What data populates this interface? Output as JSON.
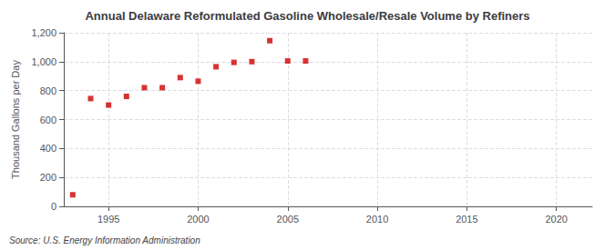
{
  "chart_data": {
    "type": "scatter",
    "title": "Annual Delaware Reformulated Gasoline Wholesale/Resale Volume by Refiners",
    "ylabel": "Thousand Gallons per Day",
    "annotation": "Source: U.S. Energy Information Administration",
    "x": [
      1993,
      1994,
      1995,
      1996,
      1997,
      1998,
      1999,
      2000,
      2001,
      2002,
      2003,
      2004,
      2005,
      2006
    ],
    "values": [
      80,
      745,
      700,
      760,
      820,
      820,
      890,
      865,
      965,
      995,
      1000,
      1145,
      1005,
      1005
    ],
    "color": "#cc0000",
    "marker": "square",
    "xlim": [
      1992.5,
      2022
    ],
    "xticks": [
      1995,
      2000,
      2005,
      2010,
      2015,
      2020
    ],
    "ylim": [
      0,
      1200
    ],
    "yticks": [
      0,
      200,
      400,
      600,
      800,
      {
        "value": 1000,
        "label": "1,000"
      },
      {
        "value": 1200,
        "label": "1,200"
      }
    ],
    "grid": true
  }
}
